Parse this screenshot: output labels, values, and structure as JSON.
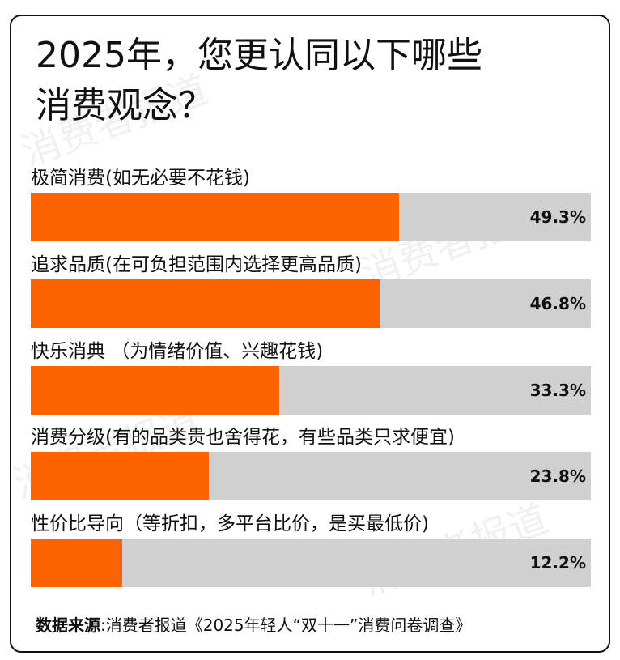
{
  "chart_data": {
    "type": "bar",
    "orientation": "horizontal",
    "title": "2025年，您更认同以下哪些消费观念？",
    "categories": [
      "极简消费(如无必要不花钱)",
      "追求品质(在可负担范围内选择更高品质)",
      "快乐消典 （为情绪价值、兴趣花钱)",
      "消费分级(有的品类贵也舍得花，有些品类只求便宜)",
      "性价比导向（等折扣，多平台比价，是买最低价)"
    ],
    "values": [
      49.3,
      46.8,
      33.3,
      23.8,
      12.2
    ],
    "value_labels": [
      "49.3%",
      "46.8%",
      "33.3%",
      "23.8%",
      "12.2%"
    ],
    "color": "#ff6300",
    "track_color": "#d0d0d0",
    "xlim": [
      0,
      75
    ],
    "source_label": "数据来源",
    "source_text": ":消费者报道《2025年轻人“双十一”消费问卷调查》",
    "watermark": "消费者报道"
  }
}
